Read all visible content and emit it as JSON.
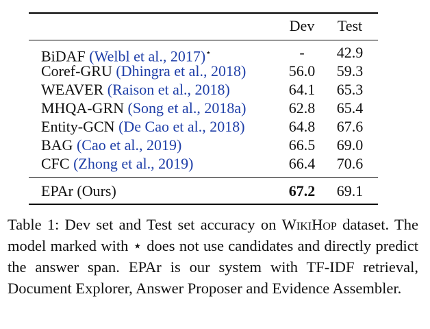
{
  "table": {
    "header": {
      "dev": "Dev",
      "test": "Test"
    },
    "rows": [
      {
        "model": "BiDAF",
        "citation": "(Welbl et al., 2017)",
        "mark": "⋆",
        "dev": "-",
        "test": "42.9"
      },
      {
        "model": "Coref-GRU",
        "citation": "(Dhingra et al., 2018)",
        "dev": "56.0",
        "test": "59.3"
      },
      {
        "model": "WEAVER",
        "citation": "(Raison et al., 2018)",
        "dev": "64.1",
        "test": "65.3"
      },
      {
        "model": "MHQA-GRN",
        "citation": "(Song et al., 2018a)",
        "dev": "62.8",
        "test": "65.4"
      },
      {
        "model": "Entity-GCN",
        "citation": "(De Cao et al., 2018)",
        "dev": "64.8",
        "test": "67.6"
      },
      {
        "model": "BAG",
        "citation": "(Cao et al., 2019)",
        "dev": "66.5",
        "test": "69.0"
      },
      {
        "model": "CFC",
        "citation": "(Zhong et al., 2019)",
        "dev": "66.4",
        "test": "70.6"
      }
    ],
    "ours": {
      "model": "EPAr (Ours)",
      "dev": "67.2",
      "test": "69.1"
    }
  },
  "caption": {
    "part1": "Table 1: Dev set and Test set accuracy on ",
    "dataset": "WikiHop",
    "part2": " dataset. The model marked with ",
    "star": "⋆",
    "part3": " does not use candidates and directly predict the answer span. EPAr is our system with TF-IDF retrieval, Document Explorer, Answer Proposer and Evidence Assembler."
  }
}
